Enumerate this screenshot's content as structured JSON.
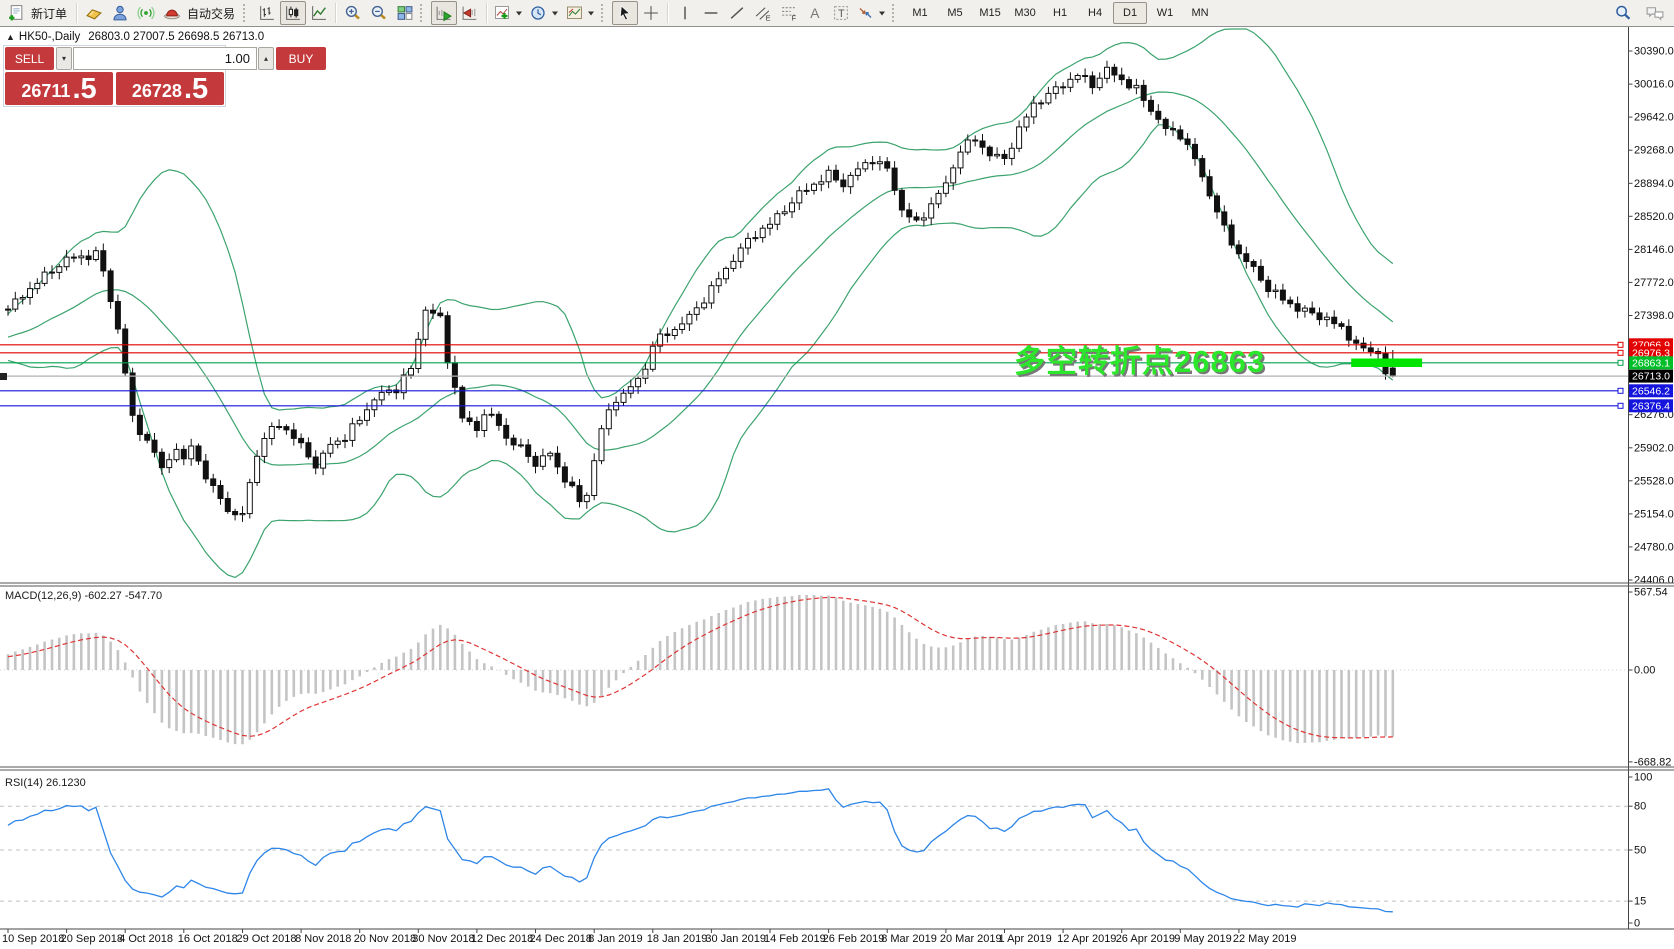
{
  "toolbar": {
    "new_order_label": "新订单",
    "auto_trading_label": "自动交易",
    "timeframes": [
      {
        "label": "M1",
        "active": false
      },
      {
        "label": "M5",
        "active": false
      },
      {
        "label": "M15",
        "active": false
      },
      {
        "label": "M30",
        "active": false
      },
      {
        "label": "H1",
        "active": false
      },
      {
        "label": "H4",
        "active": false
      },
      {
        "label": "D1",
        "active": true
      },
      {
        "label": "W1",
        "active": false
      },
      {
        "label": "MN",
        "active": false
      }
    ]
  },
  "icons": {
    "new-order-icon": "document-plus",
    "gold-bar-icon": "gold-nugget",
    "profile-icon": "person",
    "signal-icon": "broadcast-waves",
    "auto-trading-icon": "red-cap",
    "bar-chart-icon": "ohlc-bars",
    "candlestick-icon": "candles",
    "line-chart-icon": "polyline",
    "zoom-in-icon": "magnifier-plus",
    "zoom-out-icon": "magnifier-minus",
    "tile-windows-icon": "grid-tiles",
    "auto-scroll-icon": "chart-play",
    "chart-shift-icon": "chart-shift",
    "indicators-icon": "chart-green-plus",
    "periods-icon": "clock",
    "templates-icon": "mini-chart",
    "cursor-icon": "arrow-pointer",
    "crosshair-icon": "crosshair",
    "vline-icon": "vertical-line",
    "hline-icon": "horizontal-line",
    "trendline-icon": "diagonal-line",
    "channel-icon": "parallel-lines-E",
    "fibonacci-icon": "retracement-F",
    "text-icon": "A",
    "text-label-icon": "T-box",
    "arrows-icon": "arrow-objects",
    "search-icon": "magnifier",
    "chat-icon": "speech-bubbles",
    "collapse": "▲",
    "spin-up": "▴",
    "spin-down": "▾"
  },
  "trade_panel": {
    "collapse_icon": "▲",
    "title": "HK50-,Daily",
    "ohlc": "26803.0 27007.5 26698.5 26713.0",
    "sell_label": "SELL",
    "buy_label": "BUY",
    "volume": "1.00",
    "sell_main": "26711",
    "sell_pips": ".5",
    "buy_main": "26728",
    "buy_pips": ".5"
  },
  "annotation": {
    "text": "多空转折点26863",
    "color": "#2CE62C",
    "shadow": "#787878"
  },
  "indicators": {
    "macd_label": "MACD(12,26,9) -602.27 -547.70",
    "rsi_label": "RSI(14) 26.1230"
  },
  "chart_data": {
    "type": "candlestick",
    "symbol": "HK50-",
    "period": "Daily",
    "ohlc_display": {
      "open": 26803.0,
      "high": 27007.5,
      "low": 26698.5,
      "close": 26713.0
    },
    "bars_total": 190,
    "price_axis": {
      "ticks": [
        30390.0,
        30016.0,
        29642.0,
        29268.0,
        28894.0,
        28520.0,
        28146.0,
        27772.0,
        27398.0,
        26276.0,
        25902.0,
        25528.0,
        25154.0,
        24780.0,
        24406.0
      ],
      "top_price": 30390.0,
      "bottom_price": 24406.0
    },
    "levels": [
      {
        "price": 27066.9,
        "label": "27066.9",
        "line_color": "#e20000",
        "label_bg": "#e20000",
        "marker": true
      },
      {
        "price": 26976.3,
        "label": "26976.3",
        "line_color": "#e20000",
        "label_bg": "#e20000",
        "marker": true
      },
      {
        "price": 26863.1,
        "label": "26863.1",
        "line_color": "#00A44C",
        "label_bg": "#00BE28",
        "marker": true
      },
      {
        "price": 26713.0,
        "label": "26713.0",
        "line_color": "#b2b2b2",
        "label_bg": "#000000",
        "marker": false
      },
      {
        "price": 26546.2,
        "label": "26546.2",
        "line_color": "#1414DC",
        "label_bg": "#1414DC",
        "marker": true
      },
      {
        "price": 26376.4,
        "label": "26376.4",
        "line_color": "#1414DC",
        "label_bg": "#1414DC",
        "marker": true
      }
    ],
    "current_price": 26713.0,
    "highlight_rect": {
      "price": 26863.1,
      "bar_start": 184,
      "bar_end": 193,
      "color": "#00E400"
    },
    "bollinger": {
      "period": 20,
      "deviation": 2,
      "color": "#3CA36E"
    },
    "close_keypoints": [
      [
        0,
        27470
      ],
      [
        4,
        27780
      ],
      [
        8,
        28035
      ],
      [
        12,
        28090
      ],
      [
        13,
        27900
      ],
      [
        15,
        27250
      ],
      [
        17,
        26235
      ],
      [
        20,
        25840
      ],
      [
        21,
        25671
      ],
      [
        23,
        25900
      ],
      [
        24,
        25727
      ],
      [
        25,
        25952
      ],
      [
        27,
        25558
      ],
      [
        30,
        25220
      ],
      [
        31,
        25107
      ],
      [
        32,
        25163
      ],
      [
        34,
        25840
      ],
      [
        36,
        26122
      ],
      [
        37,
        26178
      ],
      [
        39,
        26010
      ],
      [
        41,
        25840
      ],
      [
        42,
        25671
      ],
      [
        44,
        25952
      ],
      [
        46,
        26010
      ],
      [
        48,
        26235
      ],
      [
        49,
        26348
      ],
      [
        51,
        26517
      ],
      [
        53,
        26573
      ],
      [
        55,
        26798
      ],
      [
        57,
        27475
      ],
      [
        59,
        27360
      ],
      [
        60,
        26910
      ],
      [
        62,
        26235
      ],
      [
        64,
        26122
      ],
      [
        65,
        26291
      ],
      [
        67,
        26178
      ],
      [
        68,
        26010
      ],
      [
        70,
        25896
      ],
      [
        72,
        25727
      ],
      [
        74,
        25840
      ],
      [
        75,
        25671
      ],
      [
        77,
        25445
      ],
      [
        78,
        25276
      ],
      [
        79,
        25389
      ],
      [
        81,
        26122
      ],
      [
        83,
        26460
      ],
      [
        85,
        26573
      ],
      [
        87,
        26798
      ],
      [
        88,
        27080
      ],
      [
        90,
        27193
      ],
      [
        92,
        27306
      ],
      [
        94,
        27475
      ],
      [
        96,
        27700
      ],
      [
        98,
        27926
      ],
      [
        100,
        28151
      ],
      [
        102,
        28320
      ],
      [
        104,
        28433
      ],
      [
        106,
        28602
      ],
      [
        108,
        28771
      ],
      [
        110,
        28883
      ],
      [
        112,
        28996
      ],
      [
        114,
        28883
      ],
      [
        116,
        29052
      ],
      [
        118,
        29165
      ],
      [
        120,
        29052
      ],
      [
        122,
        28602
      ],
      [
        124,
        28433
      ],
      [
        126,
        28658
      ],
      [
        128,
        28883
      ],
      [
        130,
        29277
      ],
      [
        132,
        29390
      ],
      [
        134,
        29221
      ],
      [
        136,
        29165
      ],
      [
        138,
        29503
      ],
      [
        140,
        29785
      ],
      [
        142,
        29897
      ],
      [
        144,
        30010
      ],
      [
        146,
        30123
      ],
      [
        148,
        30010
      ],
      [
        150,
        30178
      ],
      [
        152,
        30066
      ],
      [
        154,
        29953
      ],
      [
        156,
        29728
      ],
      [
        158,
        29503
      ],
      [
        160,
        29447
      ],
      [
        162,
        29165
      ],
      [
        164,
        28771
      ],
      [
        166,
        28376
      ],
      [
        168,
        28094
      ],
      [
        170,
        27926
      ],
      [
        172,
        27700
      ],
      [
        174,
        27585
      ],
      [
        176,
        27475
      ],
      [
        178,
        27419
      ],
      [
        180,
        27360
      ],
      [
        182,
        27250
      ],
      [
        184,
        27080
      ],
      [
        185,
        27024
      ],
      [
        187,
        26968
      ],
      [
        188,
        26740
      ],
      [
        189,
        26713
      ]
    ],
    "time_labels": [
      "10 Sep 2018",
      "20 Sep 2018",
      "4 Oct 2018",
      "16 Oct 2018",
      "29 Oct 2018",
      "8 Nov 2018",
      "20 Nov 2018",
      "30 Nov 2018",
      "12 Dec 2018",
      "24 Dec 2018",
      "8 Jan 2019",
      "18 Jan 2019",
      "30 Jan 2019",
      "14 Feb 2019",
      "26 Feb 2019",
      "8 Mar 2019",
      "20 Mar 2019",
      "1 Apr 2019",
      "12 Apr 2019",
      "26 Apr 2019",
      "9 May 2019",
      "22 May 2019"
    ],
    "macd": {
      "fast": 12,
      "slow": 26,
      "signal_period": 9,
      "value": -602.27,
      "signal_value": -547.7,
      "axis_labels": [
        "567.54",
        "0.00",
        "-668.82"
      ],
      "histogram_color": "#c4c4c4",
      "signal_color": "#E03535"
    },
    "rsi": {
      "period": 14,
      "value": 26.123,
      "axis_labels": [
        "100",
        "80",
        "50",
        "15",
        "0"
      ],
      "levels": [
        80,
        50,
        15
      ],
      "line_color": "#2E86E8"
    }
  }
}
